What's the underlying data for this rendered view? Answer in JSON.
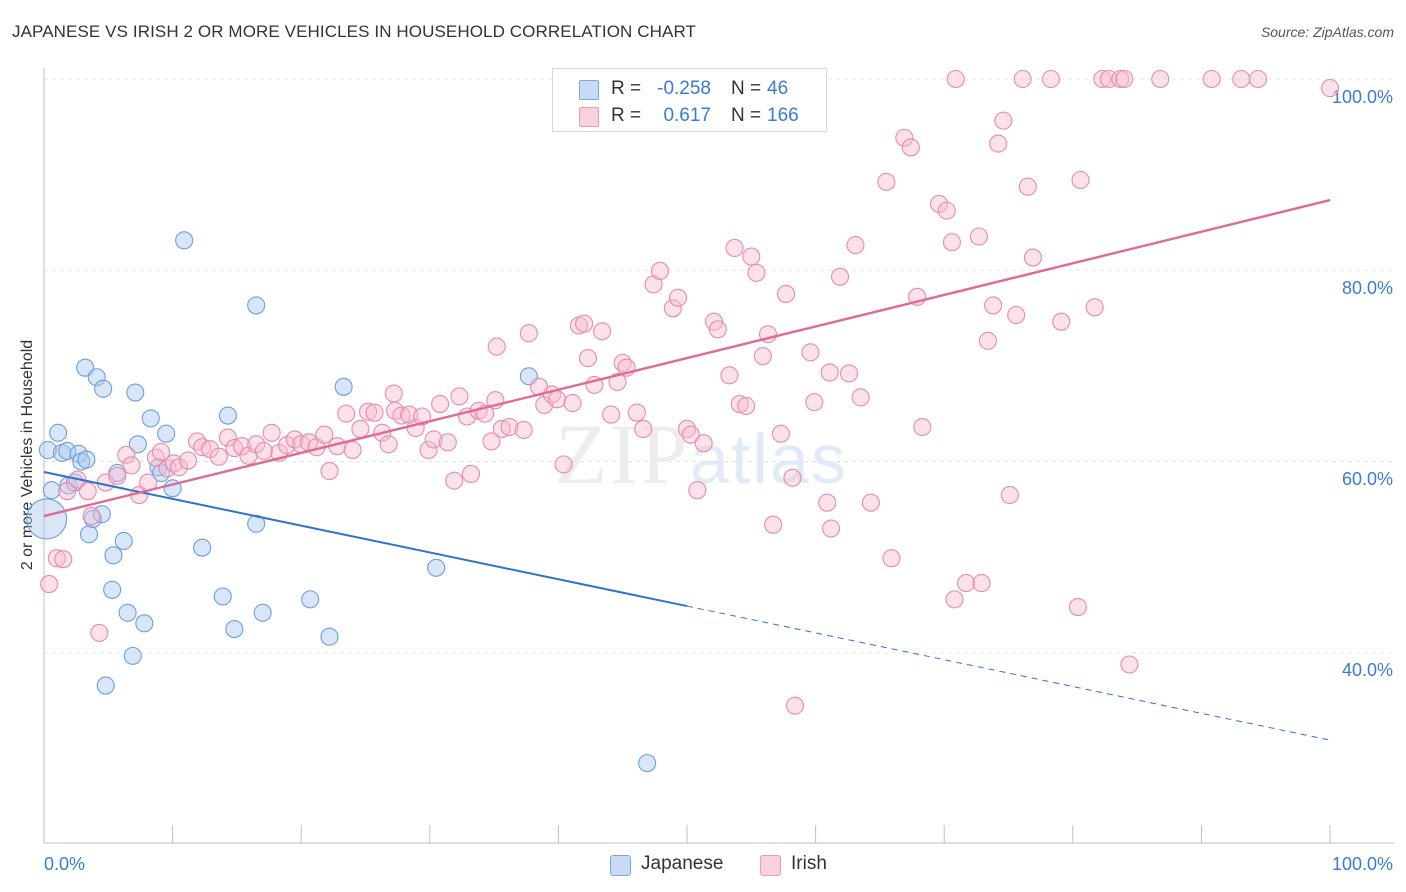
{
  "header": {
    "title": "JAPANESE VS IRISH 2 OR MORE VEHICLES IN HOUSEHOLD CORRELATION CHART",
    "source": "Source: ZipAtlas.com"
  },
  "legend": {
    "rows": [
      {
        "r_label": "R =",
        "r_value": "-0.258",
        "n_label": "N =",
        "n_value": "46",
        "color": "#aac8f0",
        "border": "#6c9fe0"
      },
      {
        "r_label": "R =",
        "r_value": "0.617",
        "n_label": "N =",
        "n_value": "166",
        "color": "#f7bcd0",
        "border": "#e88aab"
      }
    ]
  },
  "bottom_legend": [
    {
      "label": "Japanese",
      "color": "#c7dbf5",
      "border": "#7aa8e6"
    },
    {
      "label": "Irish",
      "color": "#f9d0de",
      "border": "#e99ab6"
    }
  ],
  "watermark": {
    "zip": "ZIP",
    "atlas": "atlas"
  },
  "chart_data": {
    "type": "scatter",
    "title": "JAPANESE VS IRISH 2 OR MORE VEHICLES IN HOUSEHOLD CORRELATION CHART",
    "xlabel": "",
    "ylabel": "2 or more Vehicles in Household",
    "xlim": [
      0,
      100
    ],
    "ylim": [
      20,
      102
    ],
    "x_tick_labels": [
      "0.0%",
      "100.0%"
    ],
    "y_tick_labels": [
      "40.0%",
      "60.0%",
      "80.0%",
      "100.0%"
    ],
    "y_ticks": [
      40,
      60,
      80,
      100
    ],
    "grid": true,
    "series": [
      {
        "name": "Japanese",
        "color": "#6c9fe0",
        "fill": "rgba(170,200,240,0.45)",
        "trend": {
          "x": [
            0,
            50,
            100
          ],
          "y": [
            58.9,
            44.9,
            30.9
          ],
          "solid_until": 50,
          "color": "#2f72d0"
        },
        "points": [
          {
            "x": 0.2,
            "y": 54.0,
            "big": true
          },
          {
            "x": 0.3,
            "y": 61.2
          },
          {
            "x": 0.6,
            "y": 57.0
          },
          {
            "x": 1.1,
            "y": 63.0
          },
          {
            "x": 1.4,
            "y": 60.9
          },
          {
            "x": 1.8,
            "y": 61.1
          },
          {
            "x": 1.9,
            "y": 57.5
          },
          {
            "x": 2.4,
            "y": 57.8
          },
          {
            "x": 2.7,
            "y": 60.8
          },
          {
            "x": 2.9,
            "y": 60.0
          },
          {
            "x": 3.3,
            "y": 60.2
          },
          {
            "x": 3.2,
            "y": 69.8
          },
          {
            "x": 3.5,
            "y": 52.4
          },
          {
            "x": 3.8,
            "y": 54.0
          },
          {
            "x": 4.1,
            "y": 68.8
          },
          {
            "x": 4.5,
            "y": 54.5
          },
          {
            "x": 4.6,
            "y": 67.6
          },
          {
            "x": 4.8,
            "y": 36.6
          },
          {
            "x": 5.3,
            "y": 46.6
          },
          {
            "x": 5.4,
            "y": 50.2
          },
          {
            "x": 5.7,
            "y": 58.8
          },
          {
            "x": 6.2,
            "y": 51.7
          },
          {
            "x": 6.5,
            "y": 44.2
          },
          {
            "x": 6.9,
            "y": 39.7
          },
          {
            "x": 7.1,
            "y": 67.2
          },
          {
            "x": 7.3,
            "y": 61.8
          },
          {
            "x": 7.8,
            "y": 43.1
          },
          {
            "x": 8.3,
            "y": 64.5
          },
          {
            "x": 8.9,
            "y": 59.4
          },
          {
            "x": 9.1,
            "y": 58.8
          },
          {
            "x": 9.5,
            "y": 62.9
          },
          {
            "x": 10.0,
            "y": 57.2
          },
          {
            "x": 10.9,
            "y": 83.1
          },
          {
            "x": 12.3,
            "y": 51.0
          },
          {
            "x": 13.9,
            "y": 45.9
          },
          {
            "x": 14.3,
            "y": 64.8
          },
          {
            "x": 14.8,
            "y": 42.5
          },
          {
            "x": 16.5,
            "y": 53.5
          },
          {
            "x": 16.5,
            "y": 76.3
          },
          {
            "x": 17.0,
            "y": 44.2
          },
          {
            "x": 20.7,
            "y": 45.6
          },
          {
            "x": 22.2,
            "y": 41.7
          },
          {
            "x": 23.3,
            "y": 67.8
          },
          {
            "x": 30.5,
            "y": 48.9
          },
          {
            "x": 37.7,
            "y": 68.9
          },
          {
            "x": 46.9,
            "y": 28.5
          }
        ]
      },
      {
        "name": "Irish",
        "color": "#e88aab",
        "fill": "rgba(247,188,208,0.45)",
        "trend": {
          "x": [
            0,
            100
          ],
          "y": [
            54.3,
            87.3
          ],
          "color": "#e06a94"
        },
        "points": [
          {
            "x": 0.4,
            "y": 47.2
          },
          {
            "x": 1.0,
            "y": 49.9
          },
          {
            "x": 1.5,
            "y": 49.8
          },
          {
            "x": 1.8,
            "y": 56.9
          },
          {
            "x": 2.6,
            "y": 58.1
          },
          {
            "x": 3.4,
            "y": 56.9
          },
          {
            "x": 3.7,
            "y": 54.3
          },
          {
            "x": 4.3,
            "y": 42.1
          },
          {
            "x": 4.8,
            "y": 57.8
          },
          {
            "x": 5.7,
            "y": 58.5
          },
          {
            "x": 6.4,
            "y": 60.7
          },
          {
            "x": 6.8,
            "y": 59.6
          },
          {
            "x": 7.4,
            "y": 56.5
          },
          {
            "x": 8.1,
            "y": 57.8
          },
          {
            "x": 8.7,
            "y": 60.4
          },
          {
            "x": 9.1,
            "y": 61.0
          },
          {
            "x": 9.6,
            "y": 59.3
          },
          {
            "x": 10.1,
            "y": 59.8
          },
          {
            "x": 10.5,
            "y": 59.4
          },
          {
            "x": 11.2,
            "y": 60.1
          },
          {
            "x": 11.9,
            "y": 62.1
          },
          {
            "x": 12.3,
            "y": 61.5
          },
          {
            "x": 12.9,
            "y": 61.3
          },
          {
            "x": 13.6,
            "y": 60.5
          },
          {
            "x": 14.3,
            "y": 62.5
          },
          {
            "x": 14.8,
            "y": 61.4
          },
          {
            "x": 15.4,
            "y": 61.6
          },
          {
            "x": 15.9,
            "y": 60.6
          },
          {
            "x": 16.5,
            "y": 61.8
          },
          {
            "x": 17.1,
            "y": 61.1
          },
          {
            "x": 17.7,
            "y": 63.0
          },
          {
            "x": 18.3,
            "y": 60.9
          },
          {
            "x": 18.9,
            "y": 61.7
          },
          {
            "x": 19.5,
            "y": 62.3
          },
          {
            "x": 20.0,
            "y": 61.8
          },
          {
            "x": 20.6,
            "y": 62.0
          },
          {
            "x": 21.2,
            "y": 61.5
          },
          {
            "x": 21.8,
            "y": 62.8
          },
          {
            "x": 22.2,
            "y": 59.0
          },
          {
            "x": 22.8,
            "y": 61.6
          },
          {
            "x": 23.5,
            "y": 65.0
          },
          {
            "x": 24.0,
            "y": 61.2
          },
          {
            "x": 24.6,
            "y": 63.4
          },
          {
            "x": 25.2,
            "y": 65.2
          },
          {
            "x": 25.7,
            "y": 65.1
          },
          {
            "x": 26.3,
            "y": 63.0
          },
          {
            "x": 26.8,
            "y": 61.8
          },
          {
            "x": 27.3,
            "y": 65.3
          },
          {
            "x": 27.2,
            "y": 67.1
          },
          {
            "x": 27.8,
            "y": 64.8
          },
          {
            "x": 28.4,
            "y": 64.9
          },
          {
            "x": 28.9,
            "y": 63.5
          },
          {
            "x": 29.4,
            "y": 64.7
          },
          {
            "x": 29.9,
            "y": 61.2
          },
          {
            "x": 30.3,
            "y": 62.3
          },
          {
            "x": 30.8,
            "y": 66.0
          },
          {
            "x": 31.4,
            "y": 62.0
          },
          {
            "x": 31.9,
            "y": 58.0
          },
          {
            "x": 32.3,
            "y": 66.8
          },
          {
            "x": 32.9,
            "y": 64.7
          },
          {
            "x": 33.2,
            "y": 58.7
          },
          {
            "x": 33.8,
            "y": 65.3
          },
          {
            "x": 34.3,
            "y": 65.0
          },
          {
            "x": 34.8,
            "y": 62.1
          },
          {
            "x": 35.1,
            "y": 66.4
          },
          {
            "x": 35.6,
            "y": 63.4
          },
          {
            "x": 35.2,
            "y": 72.0
          },
          {
            "x": 36.2,
            "y": 63.6
          },
          {
            "x": 37.3,
            "y": 63.3
          },
          {
            "x": 37.7,
            "y": 73.4
          },
          {
            "x": 38.5,
            "y": 67.8
          },
          {
            "x": 38.9,
            "y": 65.9
          },
          {
            "x": 39.5,
            "y": 67.0
          },
          {
            "x": 39.9,
            "y": 66.5
          },
          {
            "x": 40.4,
            "y": 59.7
          },
          {
            "x": 41.1,
            "y": 66.1
          },
          {
            "x": 41.6,
            "y": 74.2
          },
          {
            "x": 42.0,
            "y": 74.4
          },
          {
            "x": 42.3,
            "y": 70.8
          },
          {
            "x": 42.8,
            "y": 68.0
          },
          {
            "x": 43.4,
            "y": 73.6
          },
          {
            "x": 44.1,
            "y": 64.9
          },
          {
            "x": 44.6,
            "y": 68.3
          },
          {
            "x": 45.0,
            "y": 70.3
          },
          {
            "x": 45.3,
            "y": 69.8
          },
          {
            "x": 46.1,
            "y": 65.1
          },
          {
            "x": 46.6,
            "y": 63.4
          },
          {
            "x": 47.4,
            "y": 78.5
          },
          {
            "x": 47.9,
            "y": 79.9
          },
          {
            "x": 48.9,
            "y": 76.0
          },
          {
            "x": 49.3,
            "y": 77.1
          },
          {
            "x": 50.0,
            "y": 63.4
          },
          {
            "x": 50.3,
            "y": 62.8
          },
          {
            "x": 50.8,
            "y": 57.0
          },
          {
            "x": 51.3,
            "y": 61.9
          },
          {
            "x": 52.1,
            "y": 74.6
          },
          {
            "x": 52.4,
            "y": 73.8
          },
          {
            "x": 53.3,
            "y": 69.0
          },
          {
            "x": 53.7,
            "y": 82.3
          },
          {
            "x": 54.1,
            "y": 66.0
          },
          {
            "x": 54.6,
            "y": 65.8
          },
          {
            "x": 55.0,
            "y": 81.4
          },
          {
            "x": 55.4,
            "y": 79.7
          },
          {
            "x": 55.9,
            "y": 71.0
          },
          {
            "x": 56.3,
            "y": 73.3
          },
          {
            "x": 56.7,
            "y": 53.4
          },
          {
            "x": 57.3,
            "y": 62.9
          },
          {
            "x": 57.7,
            "y": 77.5
          },
          {
            "x": 58.2,
            "y": 58.3
          },
          {
            "x": 58.4,
            "y": 34.5
          },
          {
            "x": 59.6,
            "y": 71.4
          },
          {
            "x": 59.9,
            "y": 66.2
          },
          {
            "x": 60.9,
            "y": 55.7
          },
          {
            "x": 61.1,
            "y": 69.3
          },
          {
            "x": 61.2,
            "y": 53.0
          },
          {
            "x": 61.9,
            "y": 79.3
          },
          {
            "x": 62.6,
            "y": 69.2
          },
          {
            "x": 63.1,
            "y": 82.6
          },
          {
            "x": 63.5,
            "y": 66.7
          },
          {
            "x": 64.3,
            "y": 55.7
          },
          {
            "x": 65.5,
            "y": 89.2
          },
          {
            "x": 65.9,
            "y": 49.9
          },
          {
            "x": 66.9,
            "y": 93.8
          },
          {
            "x": 67.4,
            "y": 92.8
          },
          {
            "x": 67.9,
            "y": 77.2
          },
          {
            "x": 68.3,
            "y": 63.6
          },
          {
            "x": 69.6,
            "y": 86.9
          },
          {
            "x": 70.2,
            "y": 86.2
          },
          {
            "x": 70.6,
            "y": 82.9
          },
          {
            "x": 70.8,
            "y": 45.6
          },
          {
            "x": 70.9,
            "y": 100.0
          },
          {
            "x": 71.7,
            "y": 47.3
          },
          {
            "x": 72.7,
            "y": 83.5
          },
          {
            "x": 72.9,
            "y": 47.3
          },
          {
            "x": 73.4,
            "y": 72.6
          },
          {
            "x": 73.8,
            "y": 76.3
          },
          {
            "x": 74.2,
            "y": 93.2
          },
          {
            "x": 74.6,
            "y": 95.6
          },
          {
            "x": 75.1,
            "y": 56.5
          },
          {
            "x": 75.6,
            "y": 75.3
          },
          {
            "x": 76.1,
            "y": 100.0
          },
          {
            "x": 76.5,
            "y": 88.7
          },
          {
            "x": 76.9,
            "y": 81.3
          },
          {
            "x": 78.3,
            "y": 100.0
          },
          {
            "x": 79.1,
            "y": 74.6
          },
          {
            "x": 80.4,
            "y": 44.8
          },
          {
            "x": 80.6,
            "y": 89.4
          },
          {
            "x": 81.7,
            "y": 76.1
          },
          {
            "x": 82.3,
            "y": 100.0
          },
          {
            "x": 82.8,
            "y": 100.0
          },
          {
            "x": 83.7,
            "y": 100.0
          },
          {
            "x": 84.0,
            "y": 100.0
          },
          {
            "x": 84.4,
            "y": 38.8
          },
          {
            "x": 86.8,
            "y": 100.0
          },
          {
            "x": 90.8,
            "y": 100.0
          },
          {
            "x": 93.1,
            "y": 100.0
          },
          {
            "x": 94.4,
            "y": 100.0
          },
          {
            "x": 100.0,
            "y": 99.0
          }
        ]
      }
    ]
  }
}
